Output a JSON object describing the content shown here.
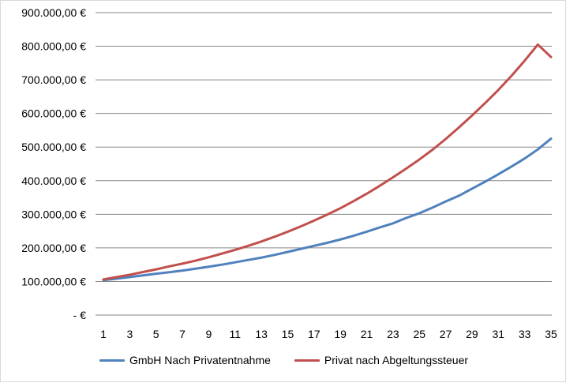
{
  "chart_data": {
    "type": "line",
    "title": "",
    "xlabel": "",
    "ylabel": "",
    "x": [
      1,
      2,
      3,
      4,
      5,
      6,
      7,
      8,
      9,
      10,
      11,
      12,
      13,
      14,
      15,
      16,
      17,
      18,
      19,
      20,
      21,
      22,
      23,
      24,
      25,
      26,
      27,
      28,
      29,
      30,
      31,
      32,
      33,
      34,
      35
    ],
    "x_tick_labels": [
      "1",
      "3",
      "5",
      "7",
      "9",
      "11",
      "13",
      "15",
      "17",
      "19",
      "21",
      "23",
      "25",
      "27",
      "29",
      "31",
      "33",
      "35"
    ],
    "y_tick_labels": [
      "-  €",
      "100.000,00 €",
      "200.000,00 €",
      "300.000,00 €",
      "400.000,00 €",
      "500.000,00 €",
      "600.000,00 €",
      "700.000,00 €",
      "800.000,00 €",
      "900.000,00 €"
    ],
    "ylim": [
      0,
      900000
    ],
    "grid": true,
    "legend_position": "bottom",
    "series": [
      {
        "name": "GmbH Nach Privatentnahme",
        "color": "#4f81bd",
        "values": [
          104000,
          108500,
          113000,
          118000,
          123000,
          127500,
          132500,
          138000,
          144000,
          150000,
          157000,
          164000,
          171000,
          179000,
          188000,
          197000,
          206000,
          215000,
          225000,
          236000,
          248000,
          261000,
          273000,
          289000,
          303000,
          320000,
          338000,
          355000,
          376000,
          397000,
          419000,
          442000,
          466000,
          493000,
          525000
        ]
      },
      {
        "name": "Privat nach Abgeltungssteuer",
        "color": "#c0504d",
        "values": [
          106000,
          113000,
          120000,
          128000,
          136000,
          145000,
          153000,
          162000,
          172000,
          183000,
          194000,
          206000,
          219000,
          233000,
          248000,
          264000,
          281000,
          299000,
          318000,
          339000,
          361000,
          385000,
          410000,
          436000,
          463000,
          492000,
          524000,
          558000,
          594000,
          631000,
          670000,
          712000,
          757000,
          805000,
          768000
        ]
      }
    ]
  }
}
